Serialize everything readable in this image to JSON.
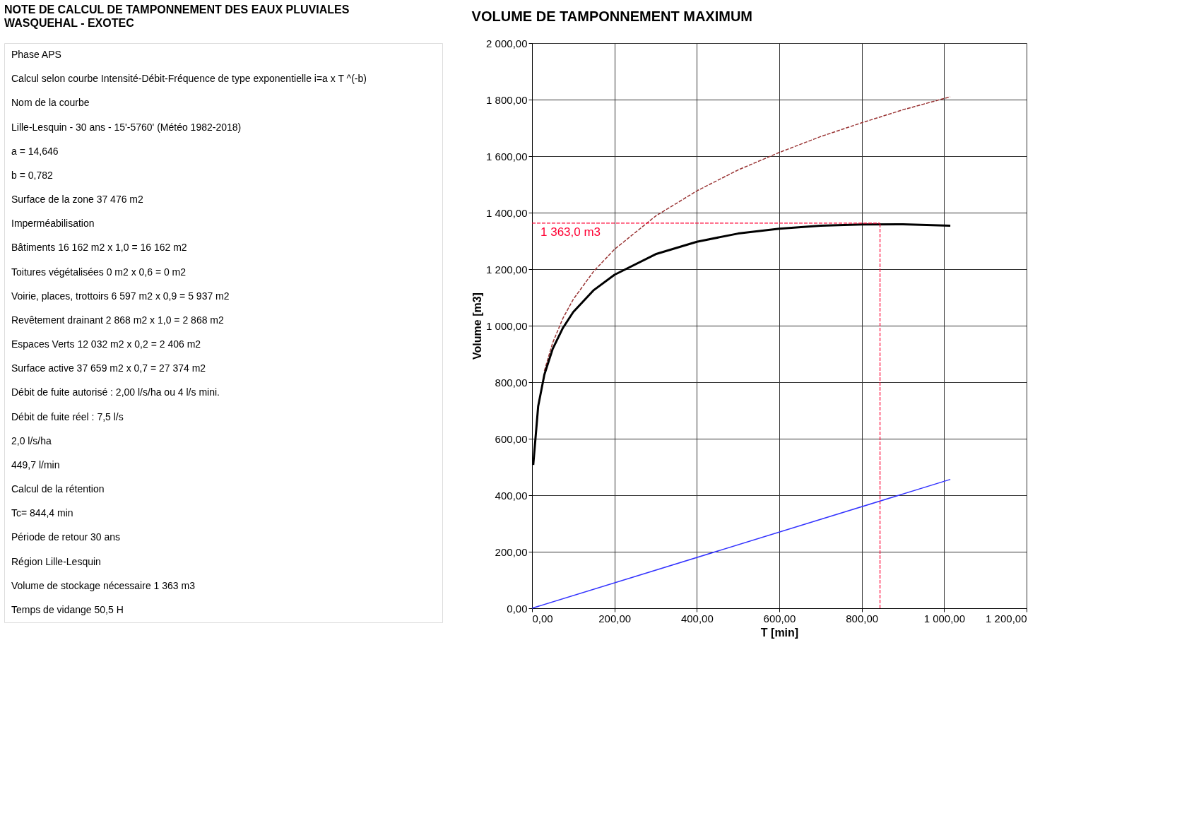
{
  "chart_data": [
    {
      "type": "other",
      "title": "NOTE DE CALCUL DE TAMPONNEMENT DES EAUX PLUVIALES",
      "subtitle": "WASQUEHAL - EXOTEC",
      "annotations": [
        "Phase APS",
        "Calcul selon courbe Intensité-Débit-Fréquence de type exponentielle i=a x T ^(-b)",
        "Nom de  la courbe",
        "Lille-Lesquin - 30 ans - 15'-5760' (Météo 1982-2018)",
        "a =   14,646",
        "b =   0,782",
        "Surface de la zone   37 476 m2",
        "Imperméabilisation",
        "Bâtiments   16 162 m2   x 1,0 =   16 162 m2",
        "Toitures végétalisées   0 m2   x 0,6 =   0 m2",
        "Voirie, places, trottoirs   6 597 m2   x 0,9 =   5 937 m2",
        "Revêtement drainant   2 868 m2   x 1,0 =   2 868 m2",
        "Espaces Verts   12 032 m2   x 0,2 =   2 406 m2",
        "Surface active   37 659 m2   x 0,7 =   27 374 m2",
        "Débit de fuite autorisé :   2,00 l/s/ha   ou   4 l/s mini.",
        "Débit de fuite réel :   7,5 l/s",
        "2,0 l/s/ha",
        "449,7 l/min",
        "Calcul de la rétention",
        "Tc=   844,4 min",
        "Période de retour   30 ans",
        "Région Lille-Lesquin",
        "Volume de stockage nécessaire   1 363 m3",
        "Temps de vidange   50,5 H"
      ]
    },
    {
      "type": "line",
      "title": "VOLUME DE TAMPONNEMENT MAXIMUM",
      "xlabel": "T [min]",
      "ylabel": "Volume [m3]",
      "x": [
        3,
        15,
        30,
        50,
        75,
        100,
        150,
        200,
        300,
        400,
        500,
        600,
        700,
        800,
        900,
        1015
      ],
      "series": [
        {
          "color": "#993333",
          "line_style": "dashed",
          "values": [
            null,
            null,
            840,
            939,
            1026,
            1093,
            1193,
            1270,
            1388,
            1477,
            1551,
            1613,
            1669,
            1718,
            1764,
            1810
          ]
        },
        {
          "color": "#3333ff",
          "line_style": "solid",
          "x": [
            0,
            1015
          ],
          "values": [
            0,
            456
          ]
        },
        {
          "color": "#000000",
          "line_style": "solid",
          "values": [
            507,
            715,
            827,
            917,
            992,
            1048,
            1126,
            1180,
            1253,
            1297,
            1326,
            1343,
            1354,
            1358,
            1359,
            1354
          ]
        }
      ],
      "xlim": [
        0,
        1200
      ],
      "xticks": [
        {
          "value": 0,
          "label": "0,00"
        },
        {
          "value": 200,
          "label": "200,00"
        },
        {
          "value": 400,
          "label": "400,00"
        },
        {
          "value": 600,
          "label": "600,00"
        },
        {
          "value": 800,
          "label": "800,00"
        },
        {
          "value": 1000,
          "label": "1 000,00"
        },
        {
          "value": 1200,
          "label": "1 200,00"
        }
      ],
      "ylim": [
        0,
        2000
      ],
      "yticks": [
        {
          "value": 0,
          "label": "0,00"
        },
        {
          "value": 200,
          "label": "200,00"
        },
        {
          "value": 400,
          "label": "400,00"
        },
        {
          "value": 600,
          "label": "600,00"
        },
        {
          "value": 800,
          "label": "800,00"
        },
        {
          "value": 1000,
          "label": "1 000,00"
        },
        {
          "value": 1200,
          "label": "1 200,00"
        },
        {
          "value": 1400,
          "label": "1 400,00"
        },
        {
          "value": 1600,
          "label": "1 600,00"
        },
        {
          "value": 1800,
          "label": "1 800,00"
        },
        {
          "value": 2000,
          "label": "2 000,00"
        }
      ],
      "ref_lines": [
        {
          "axis": "y",
          "value": 1363,
          "label": "1 363,0 m3",
          "color": "#ff0033",
          "line_style": "dashed"
        },
        {
          "axis": "x",
          "value": 844.4,
          "label": null,
          "color": "#ff0033",
          "line_style": "dashed"
        }
      ],
      "grid": true
    }
  ]
}
